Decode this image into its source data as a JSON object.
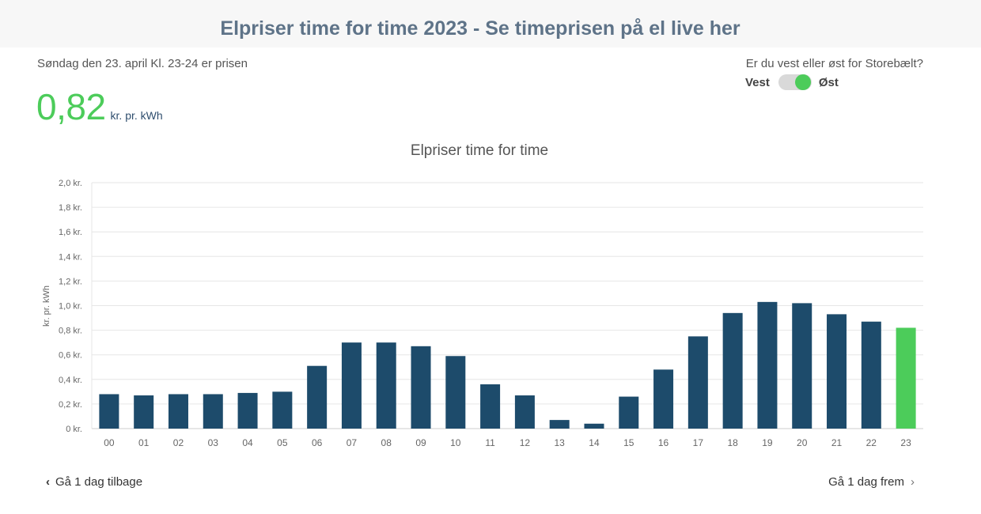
{
  "header": {
    "title": "Elpriser time for time 2023 - Se timeprisen på el live her"
  },
  "current": {
    "label": "Søndag den 23. april Kl. 23-24 er prisen",
    "price": "0,82",
    "unit": "kr. pr. kWh"
  },
  "region": {
    "question": "Er du vest eller øst for Storebælt?",
    "left_label": "Vest",
    "right_label": "Øst",
    "selected": "Øst"
  },
  "nav": {
    "back_label": "Gå 1 dag tilbage",
    "forward_label": "Gå 1 dag frem"
  },
  "colors": {
    "bar": "#1d4b6b",
    "highlight": "#4ccc5a",
    "accent": "#4ccc5a"
  },
  "chart_data": {
    "type": "bar",
    "title": "Elpriser time for time",
    "ylabel": "kr. pr. kWh",
    "xlabel": "",
    "categories": [
      "00",
      "01",
      "02",
      "03",
      "04",
      "05",
      "06",
      "07",
      "08",
      "09",
      "10",
      "11",
      "12",
      "13",
      "14",
      "15",
      "16",
      "17",
      "18",
      "19",
      "20",
      "21",
      "22",
      "23"
    ],
    "values": [
      0.28,
      0.27,
      0.28,
      0.28,
      0.29,
      0.3,
      0.51,
      0.7,
      0.7,
      0.67,
      0.59,
      0.36,
      0.27,
      0.07,
      0.04,
      0.26,
      0.48,
      0.75,
      0.94,
      1.03,
      1.02,
      0.93,
      0.87,
      0.82
    ],
    "highlight_index": 23,
    "ylim": [
      0,
      2.0
    ],
    "yticks": [
      "0 kr.",
      "0,2 kr.",
      "0,4 kr.",
      "0,6 kr.",
      "0,8 kr.",
      "1,0 kr.",
      "1,2 kr.",
      "1,4 kr.",
      "1,6 kr.",
      "1,8 kr.",
      "2,0 kr."
    ],
    "grid": true,
    "legend": "none"
  }
}
